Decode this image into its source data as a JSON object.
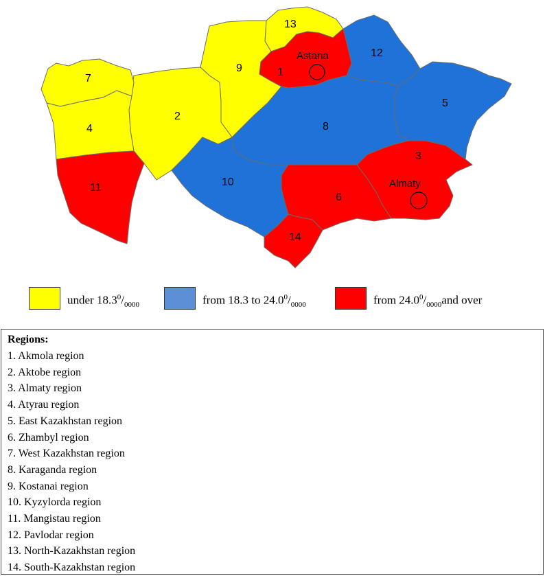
{
  "map": {
    "colors": {
      "yellow": "#ffff00",
      "blue": "#1f73d8",
      "red": "#ff0000"
    },
    "region_numbers": [
      {
        "n": "1",
        "group": "red"
      },
      {
        "n": "2",
        "group": "yellow"
      },
      {
        "n": "3",
        "group": "red"
      },
      {
        "n": "4",
        "group": "yellow"
      },
      {
        "n": "5",
        "group": "blue"
      },
      {
        "n": "6",
        "group": "red"
      },
      {
        "n": "7",
        "group": "yellow"
      },
      {
        "n": "8",
        "group": "blue"
      },
      {
        "n": "9",
        "group": "yellow"
      },
      {
        "n": "10",
        "group": "blue"
      },
      {
        "n": "11",
        "group": "red"
      },
      {
        "n": "12",
        "group": "blue"
      },
      {
        "n": "13",
        "group": "yellow"
      },
      {
        "n": "14",
        "group": "red"
      }
    ],
    "cities": [
      {
        "name": "Astana"
      },
      {
        "name": "Almaty"
      }
    ]
  },
  "legend": {
    "items": [
      {
        "pre": "under 18.3",
        "sup": "0",
        "slash": "/",
        "sub": "0000",
        "post": "",
        "color": "#ffff00"
      },
      {
        "pre": "from 18.3 to 24.0",
        "sup": "0",
        "slash": "/",
        "sub": "0000",
        "post": "",
        "color": "#5b8fd6"
      },
      {
        "pre": "from 24.0",
        "sup": "0",
        "slash": "/",
        "sub": "0000",
        "post": "and over",
        "color": "#ff0000"
      }
    ]
  },
  "regions_box": {
    "title": "Regions:",
    "items": [
      "1. Akmola region",
      "2. Aktobe region",
      "3. Almaty region",
      "4. Atyrau region",
      "5. East Kazakhstan region",
      "6. Zhambyl region",
      "7. West Kazakhstan region",
      "8. Karaganda region",
      "9. Kostanai region",
      "10. Kyzylorda region",
      "11. Mangistau region",
      "12. Pavlodar region",
      "13. North-Kazakhstan region",
      "14. South-Kazakhstan region"
    ]
  }
}
